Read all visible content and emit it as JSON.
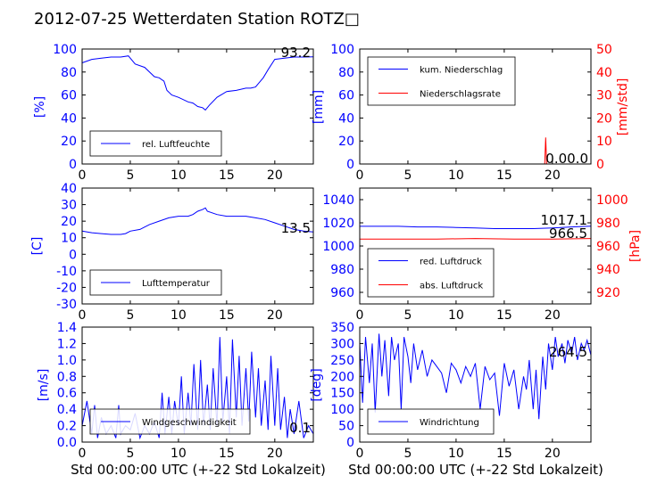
{
  "figure": {
    "title": "2012-07-25 Wetterdaten Station ROTZ□",
    "xlabel_left": "Std 00:00:00 UTC (+-22 Std Lokalzeit)",
    "xlabel_right": "Std 00:00:00 UTC (+-22 Std Lokalzeit)"
  },
  "colors": {
    "primary": "#0000ff",
    "secondary": "#ff0000",
    "axis": "#000000"
  },
  "chart_data": [
    {
      "id": "humidity",
      "type": "line",
      "ylabel": "[%]",
      "xlim": [
        0,
        24
      ],
      "ylim": [
        0,
        100
      ],
      "xticks": [
        0,
        5,
        10,
        15,
        20
      ],
      "yticks": [
        0,
        20,
        40,
        60,
        80,
        100
      ],
      "legend": "bottom-left",
      "last_value_label": "93.2",
      "series": [
        {
          "name": "rel. Luftfeuchte",
          "color": "#0000ff",
          "axis": "left",
          "x": [
            0,
            1,
            2,
            3,
            4,
            4.8,
            5.5,
            6.5,
            7.5,
            8,
            8.5,
            8.8,
            9.3,
            10,
            11,
            11.5,
            12,
            12.5,
            12.8,
            13.2,
            14,
            15,
            16,
            17,
            17.5,
            18,
            18.3,
            18.8,
            19.3,
            20,
            21,
            22,
            23,
            24
          ],
          "y": [
            88,
            91,
            92,
            93,
            93,
            94,
            87,
            84,
            76,
            75,
            72,
            64,
            60,
            58,
            54,
            53,
            50,
            49,
            47,
            51,
            58,
            63,
            64,
            66,
            66,
            67,
            70,
            75,
            82,
            91,
            92,
            93,
            93,
            93.2
          ]
        }
      ]
    },
    {
      "id": "precipitation",
      "type": "line",
      "ylabel": "[mm]",
      "ylabel2": "[mm/std]",
      "xlim": [
        0,
        24
      ],
      "ylim": [
        0,
        100
      ],
      "ylim2": [
        0,
        50
      ],
      "xticks": [
        0,
        5,
        10,
        15,
        20
      ],
      "yticks": [
        0,
        20,
        40,
        60,
        80,
        100
      ],
      "yticks2": [
        0,
        10,
        20,
        30,
        40,
        50
      ],
      "legend": "top-left",
      "last_value_label": "0.00.0",
      "series": [
        {
          "name": "kum. Niederschlag",
          "color": "#0000ff",
          "axis": "left",
          "x": [
            0,
            24
          ],
          "y": [
            0,
            0
          ]
        },
        {
          "name": "Niederschlagsrate",
          "color": "#ff0000",
          "axis": "right",
          "x": [
            0,
            19.2,
            19.3,
            19.4,
            19.5,
            24
          ],
          "y": [
            0,
            0,
            11.5,
            0,
            0,
            0
          ]
        }
      ]
    },
    {
      "id": "temperature",
      "type": "line",
      "ylabel": "[C]",
      "xlim": [
        0,
        24
      ],
      "ylim": [
        -30,
        40
      ],
      "xticks": [
        0,
        5,
        10,
        15,
        20
      ],
      "yticks": [
        -30,
        -20,
        -10,
        0,
        10,
        20,
        30,
        40
      ],
      "legend": "bottom-left",
      "last_value_label": "13.5",
      "series": [
        {
          "name": "Lufttemperatur",
          "color": "#0000ff",
          "axis": "left",
          "x": [
            0,
            1,
            2,
            3,
            4,
            4.5,
            5,
            6,
            7,
            8,
            9,
            10,
            11,
            11.5,
            12,
            12.5,
            12.8,
            13,
            14,
            15,
            16,
            17,
            18,
            19,
            20,
            21,
            22,
            23,
            24
          ],
          "y": [
            14,
            13,
            12.5,
            12,
            12,
            12.5,
            14,
            15,
            18,
            20,
            22,
            23,
            23,
            24,
            26,
            27,
            28,
            26,
            24,
            23,
            23,
            23,
            22,
            21,
            19,
            17,
            15,
            14,
            13.5
          ]
        }
      ]
    },
    {
      "id": "pressure",
      "type": "line",
      "ylabel2": "[hPa]",
      "xlim": [
        0,
        24
      ],
      "ylim": [
        950,
        1050
      ],
      "ylim2": [
        910,
        1010
      ],
      "xticks": [
        0,
        5,
        10,
        15,
        20
      ],
      "yticks": [
        960,
        980,
        1000,
        1020,
        1040
      ],
      "yticks2": [
        920,
        940,
        960,
        980,
        1000
      ],
      "legend": "bottom-left",
      "last_value_labels": [
        "1017.1",
        "966.5"
      ],
      "series": [
        {
          "name": "red. Luftdruck",
          "color": "#0000ff",
          "axis": "left",
          "x": [
            0,
            2,
            4,
            6,
            8,
            10,
            12,
            14,
            16,
            18,
            20,
            22,
            24
          ],
          "y": [
            1017,
            1017,
            1017,
            1016.5,
            1016.5,
            1016,
            1015.5,
            1015,
            1015,
            1015,
            1015.5,
            1016.5,
            1017.1
          ]
        },
        {
          "name": "abs. Luftdruck",
          "color": "#ff0000",
          "axis": "right",
          "x": [
            0,
            4,
            8,
            12,
            16,
            20,
            24
          ],
          "y": [
            966,
            966,
            966,
            966.5,
            966,
            966,
            966.5
          ]
        }
      ]
    },
    {
      "id": "wind_speed",
      "type": "line",
      "ylabel": "[m/s]",
      "xlim": [
        0,
        24
      ],
      "ylim": [
        0,
        1.4
      ],
      "xticks": [
        0,
        5,
        10,
        15,
        20
      ],
      "yticks": [
        0.0,
        0.2,
        0.4,
        0.6,
        0.8,
        1.0,
        1.2,
        1.4
      ],
      "legend": "bottom-left",
      "last_value_label": "0.1",
      "series": [
        {
          "name": "Windgeschwindigkeit",
          "color": "#0000ff",
          "axis": "left",
          "x": [
            0,
            0.5,
            1,
            1.3,
            1.6,
            2,
            2.5,
            3,
            3.5,
            3.8,
            4,
            4.5,
            5,
            5.5,
            6,
            6.5,
            7,
            7.5,
            8,
            8.3,
            8.6,
            9,
            9.3,
            9.6,
            10,
            10.3,
            10.6,
            11,
            11.3,
            11.6,
            12,
            12.3,
            12.6,
            13,
            13.3,
            13.6,
            14,
            14.3,
            14.6,
            15,
            15.3,
            15.6,
            16,
            16.3,
            16.6,
            17,
            17.3,
            17.6,
            18,
            18.3,
            18.6,
            19,
            19.3,
            19.6,
            20,
            20.3,
            20.6,
            21,
            21.3,
            21.6,
            22,
            22.5,
            23,
            23.5,
            24
          ],
          "y": [
            0.2,
            0.5,
            0.1,
            0.45,
            0.05,
            0.3,
            0.1,
            0.2,
            0.05,
            0.45,
            0.1,
            0.2,
            0.15,
            0.35,
            0.05,
            0.2,
            0.1,
            0.25,
            0.05,
            0.6,
            0.1,
            0.55,
            0.1,
            0.5,
            0.2,
            0.8,
            0.1,
            0.6,
            0.2,
            0.95,
            0.15,
            1.0,
            0.2,
            0.7,
            0.15,
            0.9,
            0.2,
            1.28,
            0.25,
            0.8,
            0.1,
            1.25,
            0.3,
            1.05,
            0.2,
            0.9,
            0.25,
            1.1,
            0.3,
            0.9,
            0.2,
            0.75,
            0.15,
            1.05,
            0.2,
            0.9,
            0.15,
            0.55,
            0.05,
            0.4,
            0.1,
            0.5,
            0.05,
            0.2,
            0.1
          ]
        }
      ]
    },
    {
      "id": "wind_direction",
      "type": "line",
      "ylabel": "[deg]",
      "xlim": [
        0,
        24
      ],
      "ylim": [
        0,
        350
      ],
      "xticks": [
        0,
        5,
        10,
        15,
        20
      ],
      "yticks": [
        0,
        50,
        100,
        150,
        200,
        250,
        300,
        350
      ],
      "legend": "bottom-left",
      "last_value_label": "264.5",
      "series": [
        {
          "name": "Windrichtung",
          "color": "#0000ff",
          "axis": "left",
          "x": [
            0,
            0.3,
            0.6,
            1,
            1.3,
            1.6,
            2,
            2.3,
            2.6,
            3,
            3.3,
            3.6,
            4,
            4.3,
            4.6,
            5,
            5.3,
            5.6,
            6,
            6.5,
            7,
            7.5,
            8,
            8.5,
            9,
            9.5,
            10,
            10.5,
            11,
            11.5,
            12,
            12.5,
            13,
            13.5,
            14,
            14.5,
            15,
            15.5,
            16,
            16.5,
            17,
            17.3,
            17.6,
            18,
            18.3,
            18.6,
            19,
            19.3,
            19.6,
            20,
            20.3,
            20.6,
            21,
            21.3,
            21.6,
            22,
            22.3,
            22.6,
            23,
            23.3,
            23.6,
            24
          ],
          "y": [
            300,
            120,
            320,
            180,
            300,
            90,
            330,
            200,
            310,
            140,
            320,
            250,
            300,
            100,
            320,
            260,
            180,
            300,
            220,
            280,
            200,
            250,
            230,
            210,
            150,
            240,
            220,
            180,
            230,
            200,
            240,
            100,
            230,
            190,
            210,
            80,
            240,
            170,
            220,
            100,
            200,
            160,
            250,
            100,
            220,
            70,
            260,
            160,
            300,
            220,
            320,
            260,
            300,
            240,
            310,
            270,
            320,
            250,
            300,
            280,
            310,
            264.5
          ]
        }
      ]
    }
  ]
}
